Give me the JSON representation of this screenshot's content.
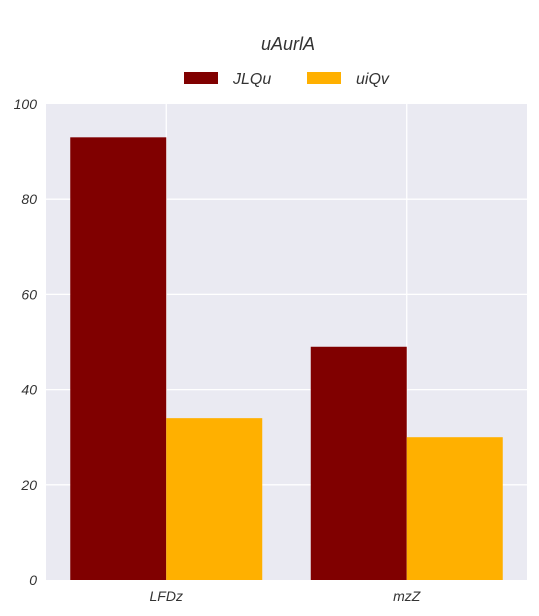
{
  "chart_data": {
    "type": "bar",
    "title": "uAurlA",
    "categories": [
      "LFDz",
      "mzZ"
    ],
    "series": [
      {
        "name": "JLQu",
        "color": "#800000",
        "values": [
          93,
          49
        ]
      },
      {
        "name": "uiQv",
        "color": "#FFB000",
        "values": [
          34,
          30
        ]
      }
    ],
    "ylim": [
      0,
      100
    ],
    "yticks": [
      0,
      20,
      40,
      60,
      80,
      100
    ],
    "xlabel": "",
    "ylabel": "",
    "grid": true,
    "legend_position": "top-center",
    "background_color": "#EAEAF2",
    "grid_color": "#FFFFFF"
  }
}
